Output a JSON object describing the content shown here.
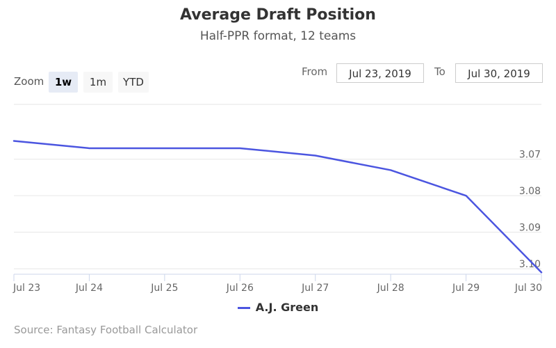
{
  "header": {
    "title": "Average Draft Position",
    "subtitle": "Half-PPR format, 12 teams"
  },
  "zoom": {
    "label": "Zoom",
    "options": [
      "1w",
      "1m",
      "YTD"
    ],
    "selected": "1w"
  },
  "range": {
    "from_label": "From",
    "from_value": "Jul 23, 2019",
    "to_label": "To",
    "to_value": "Jul 30, 2019"
  },
  "legend": {
    "series_name": "A.J. Green"
  },
  "credits": {
    "text": "Source: Fantasy Football Calculator"
  },
  "colors": {
    "series": "#4b55e0",
    "grid": "#e6e6e6",
    "axis": "#ccd6eb"
  },
  "chart_data": {
    "type": "line",
    "x": [
      "Jul 23",
      "Jul 24",
      "Jul 25",
      "Jul 26",
      "Jul 27",
      "Jul 28",
      "Jul 29",
      "Jul 30"
    ],
    "series": [
      {
        "name": "A.J. Green",
        "values": [
          3.065,
          3.067,
          3.067,
          3.067,
          3.069,
          3.073,
          3.08,
          3.101
        ]
      }
    ],
    "y_ticks": [
      3.07,
      3.08,
      3.09,
      3.1
    ],
    "y_tick_labels": [
      "3.07",
      "3.08",
      "3.09",
      "3.10"
    ],
    "ylim": [
      3.055,
      3.1015
    ],
    "y_reversed": true,
    "grid": true,
    "legend_position": "bottom-center"
  }
}
